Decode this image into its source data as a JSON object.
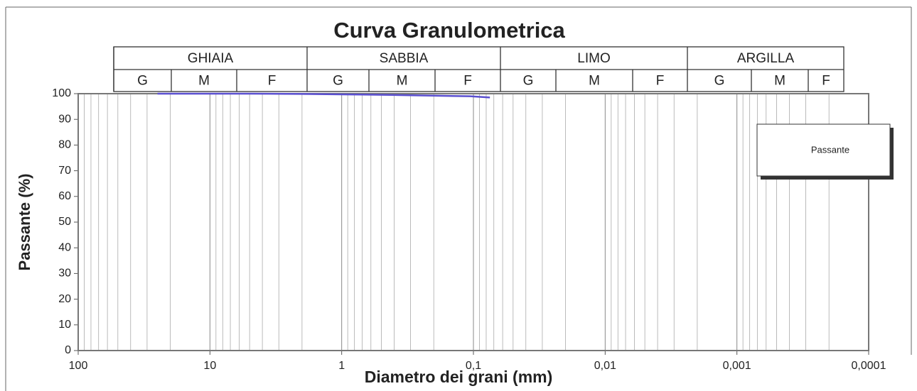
{
  "chart_data": {
    "type": "line",
    "title": "Curva Granulometrica",
    "xlabel": "Diametro dei grani (mm)",
    "ylabel": "Passante (%)",
    "x": [
      25,
      19,
      9.5,
      4.75,
      2,
      0.85,
      0.425,
      0.25,
      0.106,
      0.075
    ],
    "series": [
      {
        "name": "Passante",
        "color": "#5a4fcf",
        "values": [
          100,
          100,
          100,
          100,
          99.9,
          99.7,
          99.5,
          99.3,
          99,
          98.5
        ]
      }
    ],
    "xlim": [
      100,
      0.0001
    ],
    "xscale": "log",
    "xticks": [
      100,
      10,
      1,
      {
        "value": 0.1,
        "label": "0,1"
      },
      {
        "value": 0.01,
        "label": "0,01"
      },
      {
        "value": 0.001,
        "label": "0,001"
      },
      {
        "value": 0.0001,
        "label": "0,0001"
      }
    ],
    "ylim": [
      0,
      100
    ],
    "yticks": [
      0,
      10,
      20,
      30,
      40,
      50,
      60,
      70,
      80,
      90,
      100
    ],
    "grid": true,
    "legend": "upper right",
    "classes": [
      {
        "name": "GHIAIA",
        "sub": [
          "G",
          "M",
          "F"
        ]
      },
      {
        "name": "SABBIA",
        "sub": [
          "G",
          "M",
          "F"
        ]
      },
      {
        "name": "LIMO",
        "sub": [
          "G",
          "M",
          "F"
        ]
      },
      {
        "name": "ARGILLA",
        "sub": [
          "G",
          "M",
          "F"
        ]
      }
    ]
  }
}
